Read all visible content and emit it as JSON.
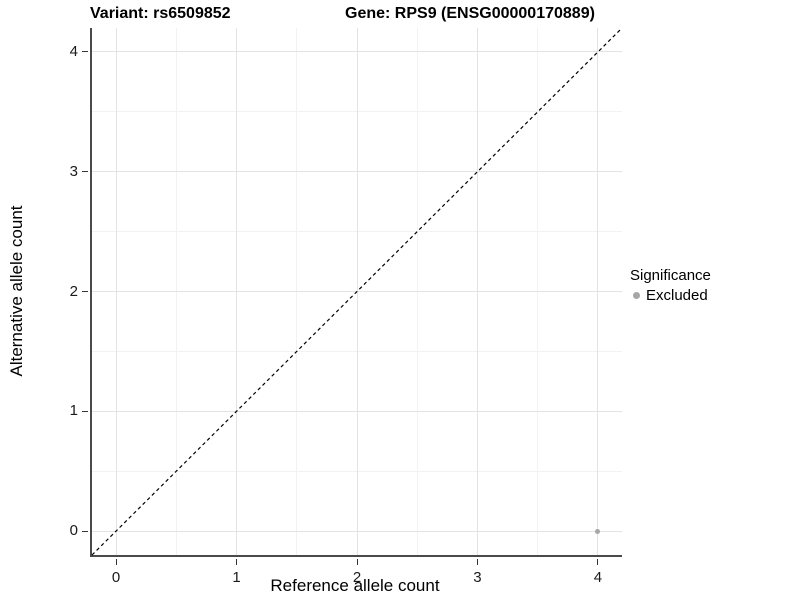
{
  "titles": {
    "variant": "Variant: rs6509852",
    "gene": "Gene: RPS9 (ENSG00000170889)"
  },
  "legend": {
    "title": "Significance",
    "items": [
      {
        "label": "Excluded",
        "color": "#a6a6a6"
      }
    ]
  },
  "colors": {
    "axis_line": "#4a4a4a",
    "grid_major": "#e3e3e3",
    "grid_minor": "#f2f2f2",
    "dashed_line": "#000000",
    "point": "#a6a6a6",
    "text": "#000000"
  },
  "chart_data": {
    "type": "scatter",
    "title_left": "Variant: rs6509852",
    "title_right": "Gene: RPS9 (ENSG00000170889)",
    "xlabel": "Reference allele count",
    "ylabel": "Alternative allele count",
    "xlim": [
      -0.2,
      4.2
    ],
    "ylim": [
      -0.2,
      4.2
    ],
    "x_ticks": [
      0,
      1,
      2,
      3,
      4
    ],
    "y_ticks": [
      0,
      1,
      2,
      3,
      4
    ],
    "x_minor_ticks": [
      0.5,
      1.5,
      2.5,
      3.5
    ],
    "y_minor_ticks": [
      0.5,
      1.5,
      2.5,
      3.5
    ],
    "grid": "major and minor, light gray on white",
    "legend_position": "right",
    "series": [
      {
        "name": "Excluded",
        "color": "#a6a6a6",
        "marker": "circle",
        "points": [
          {
            "x": 4,
            "y": 0
          }
        ]
      }
    ],
    "reference_line": {
      "kind": "identity y = x",
      "style": "dashed",
      "color": "#000000",
      "from": [
        -0.2,
        -0.2
      ],
      "to": [
        4.2,
        4.2
      ]
    }
  }
}
